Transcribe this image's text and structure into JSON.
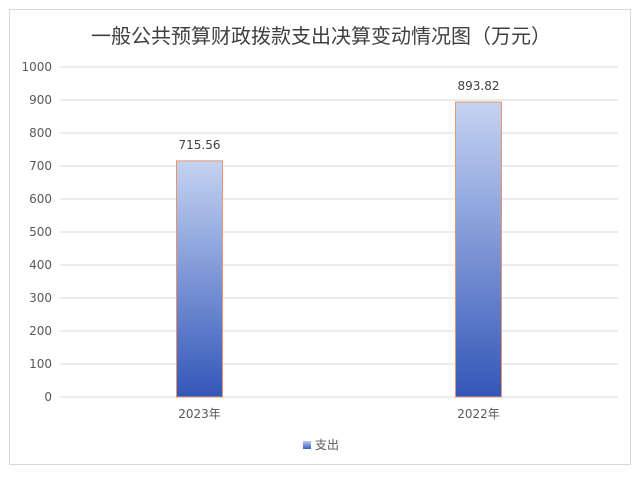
{
  "chart_data": {
    "type": "bar",
    "title": "一般公共预算财政拨款支出决算变动情况图（万元）",
    "categories": [
      "2023年",
      "2022年"
    ],
    "series": [
      {
        "name": "支出",
        "values": [
          715.56,
          893.82
        ]
      }
    ],
    "data_labels": [
      "715.56",
      "893.82"
    ],
    "ylim": [
      0,
      1000
    ],
    "yticks": [
      0,
      100,
      200,
      300,
      400,
      500,
      600,
      700,
      800,
      900,
      1000
    ],
    "grid": true,
    "legend": "bottom",
    "colors": {
      "bar_top": "#c5d3f2",
      "bar_bottom": "#3357b8",
      "bar_border": "#e8956b",
      "grid": "#d9d9d9"
    }
  }
}
